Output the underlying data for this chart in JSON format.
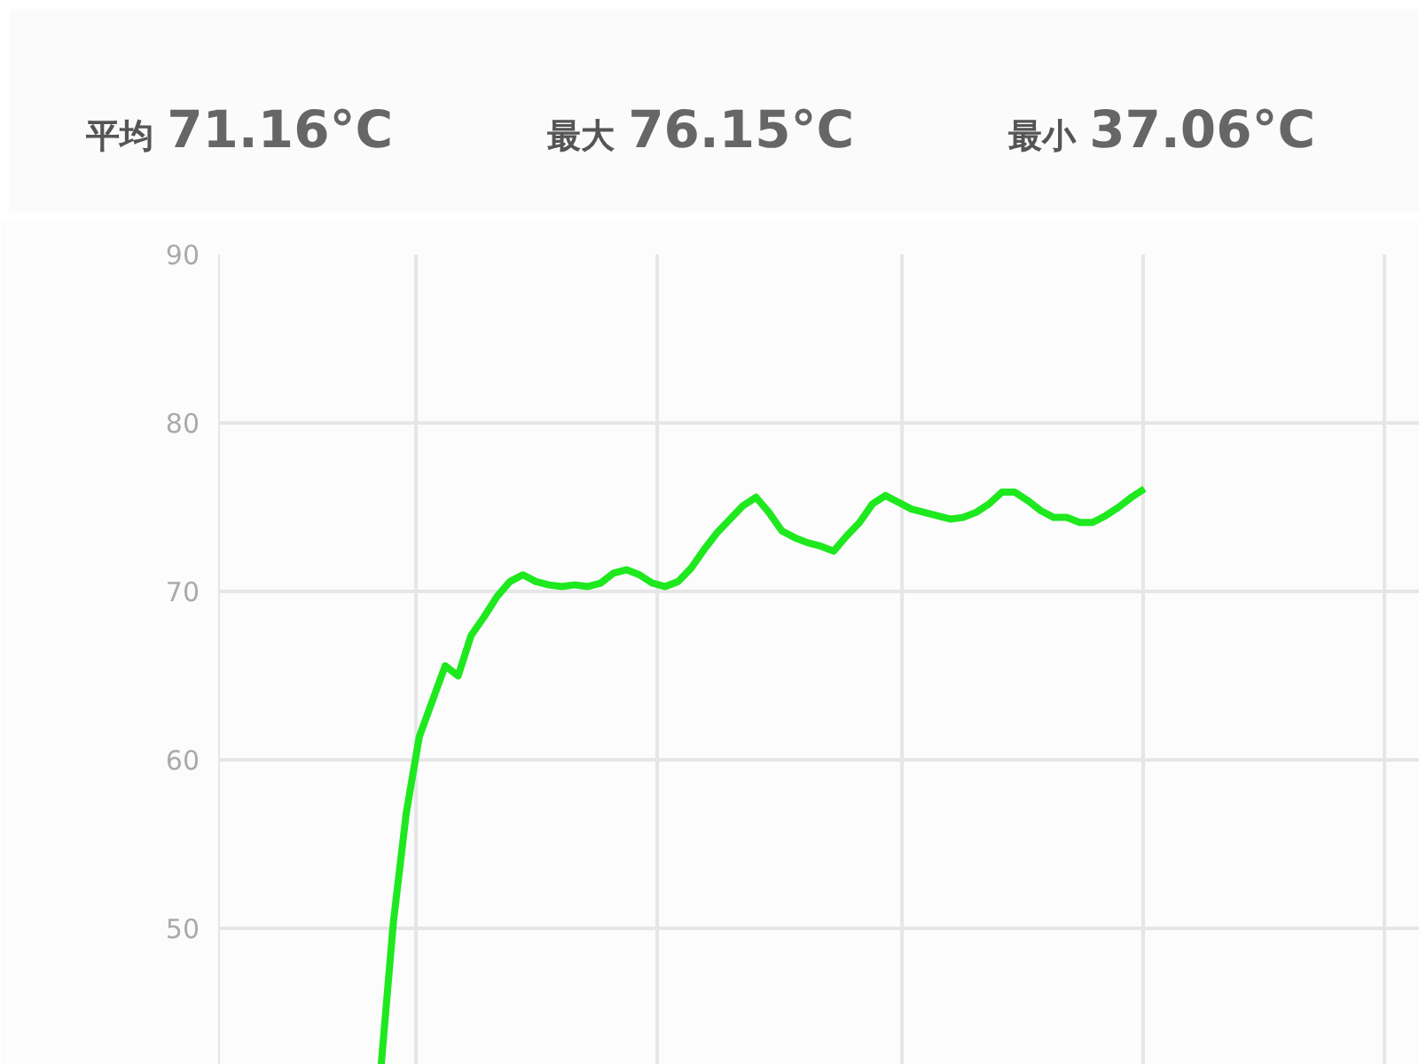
{
  "chart_data": {
    "type": "line",
    "annotations": [
      "平均 71.16°C",
      "最大 76.15°C",
      "最小 37.06°C"
    ],
    "categories": [
      null,
      null,
      null,
      null,
      null,
      null,
      null,
      null,
      null,
      null,
      null,
      null,
      null,
      null,
      null,
      null,
      null,
      null,
      null,
      null,
      null,
      null,
      null,
      null,
      null,
      null,
      null,
      null,
      null,
      null,
      null,
      null,
      null,
      null,
      null,
      null,
      null,
      null,
      null,
      null,
      null,
      null,
      null,
      null,
      null,
      null,
      null,
      null,
      null,
      null,
      null,
      null,
      null,
      null,
      null,
      null,
      null,
      null,
      null,
      null
    ],
    "series": [
      {
        "color": "#1ee81e",
        "values": [
          41.4,
          50.4,
          56.9,
          61.4,
          63.5,
          65.6,
          65.0,
          67.4,
          68.5,
          69.7,
          70.6,
          71.0,
          70.6,
          70.4,
          70.3,
          70.4,
          70.3,
          70.5,
          71.1,
          71.3,
          71.0,
          70.5,
          70.3,
          70.6,
          71.4,
          72.5,
          73.5,
          74.3,
          75.1,
          75.6,
          74.7,
          73.6,
          73.2,
          72.9,
          72.7,
          72.4,
          73.3,
          74.1,
          75.2,
          75.7,
          75.3,
          74.9,
          74.7,
          74.5,
          74.3,
          74.4,
          74.7,
          75.2,
          75.9,
          75.9,
          75.4,
          74.8,
          74.4,
          74.4,
          74.1,
          74.1,
          74.5,
          75.0,
          75.6,
          76.1
        ]
      }
    ],
    "ylim": [
      41.4,
      90
    ],
    "yticks": [
      50,
      60,
      70,
      80,
      90
    ],
    "grid": true,
    "tick_labels": "y",
    "line_style": "solid"
  }
}
